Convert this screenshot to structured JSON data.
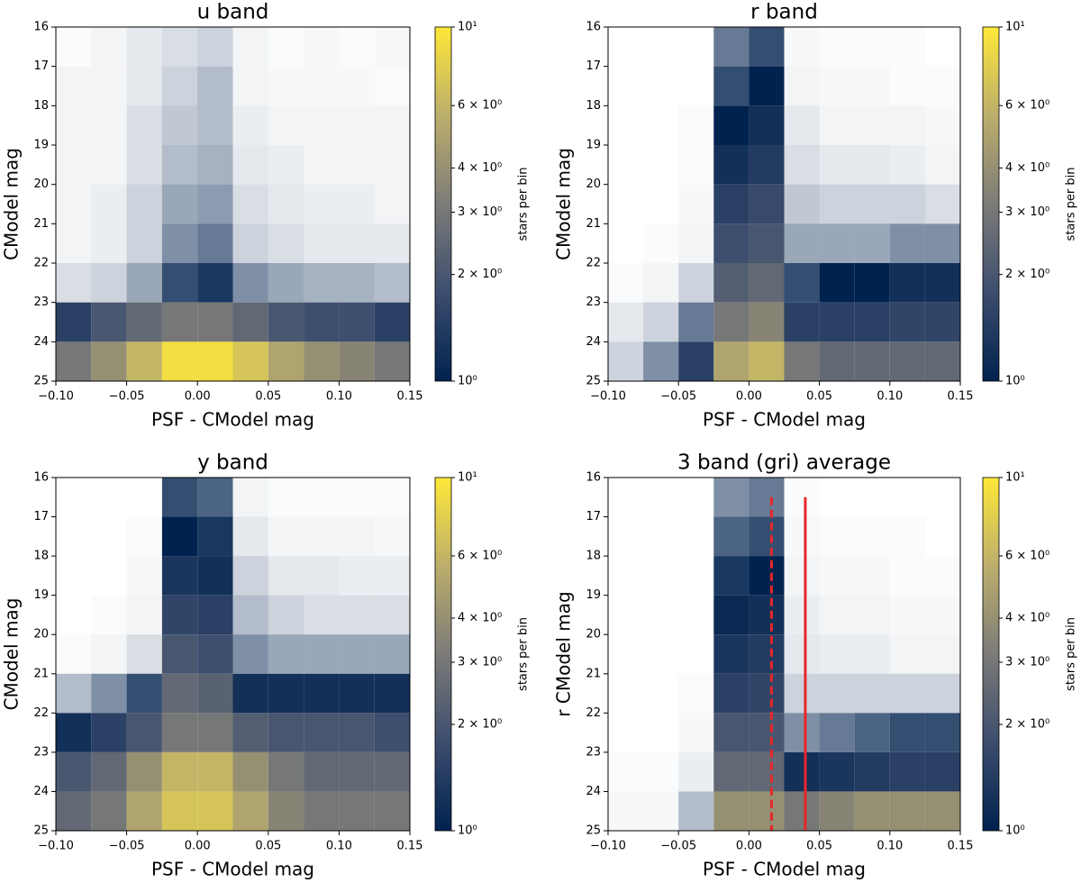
{
  "chart_data": [
    {
      "type": "hist2d",
      "title": "u band",
      "xlabel": "PSF - CModel mag",
      "ylabel": "CModel mag",
      "colorbar_label": "stars per bin",
      "xlim": [
        -0.1,
        0.15
      ],
      "ylim": [
        25,
        16
      ],
      "xticks": [
        {
          "value": -0.1,
          "label": "−0.10"
        },
        {
          "value": -0.05,
          "label": "−0.05"
        },
        {
          "value": 0,
          "label": "0.00"
        },
        {
          "value": 0.05,
          "label": "0.05"
        },
        {
          "value": 0.1,
          "label": "0.10"
        },
        {
          "value": 0.15,
          "label": "0.15"
        }
      ],
      "yticks": [
        16,
        17,
        18,
        19,
        20,
        21,
        22,
        23,
        24,
        25
      ],
      "clim": [
        1,
        10
      ],
      "clog": true,
      "cticks": [
        {
          "value": 1,
          "label": "10⁰"
        },
        {
          "value": 2,
          "label": "2 × 10⁰"
        },
        {
          "value": 3,
          "label": "3 × 10⁰"
        },
        {
          "value": 4,
          "label": "4 × 10⁰"
        },
        {
          "value": 6,
          "label": "6 × 10⁰"
        },
        {
          "value": 10,
          "label": "10¹"
        }
      ],
      "colors": [
        "#00224e",
        "#3c4d6e",
        "#7c7b78",
        "#bcae6c",
        "#fee838"
      ],
      "xbins": [
        -0.1,
        -0.075,
        -0.05,
        -0.025,
        0,
        0.025,
        0.05,
        0.075,
        0.1,
        0.125,
        0.15
      ],
      "ybins": [
        16,
        17,
        18,
        19,
        20,
        21,
        22,
        23,
        24,
        25
      ],
      "values": [
        [
          0.02,
          0.05,
          0.1,
          0.15,
          0.2,
          0.05,
          0.02,
          0.03,
          0.02,
          0.03
        ],
        [
          0.05,
          0.05,
          0.1,
          0.2,
          0.3,
          0.05,
          0.03,
          0.03,
          0.03,
          0.02
        ],
        [
          0.05,
          0.05,
          0.15,
          0.25,
          0.3,
          0.08,
          0.05,
          0.05,
          0.05,
          0.05
        ],
        [
          0.05,
          0.05,
          0.15,
          0.3,
          0.35,
          0.1,
          0.08,
          0.05,
          0.05,
          0.05
        ],
        [
          0.05,
          0.08,
          0.2,
          0.4,
          0.45,
          0.15,
          0.1,
          0.08,
          0.08,
          0.05
        ],
        [
          0.05,
          0.08,
          0.2,
          0.5,
          0.6,
          0.2,
          0.15,
          0.1,
          0.1,
          0.1
        ],
        [
          0.15,
          0.2,
          0.4,
          0.8,
          0.9,
          0.5,
          0.4,
          0.35,
          0.35,
          0.3
        ],
        [
          1.5,
          2,
          2.5,
          3,
          3,
          2.5,
          2,
          1.8,
          1.8,
          1.5
        ],
        [
          3,
          4,
          6,
          9,
          9,
          7,
          5,
          4,
          3.5,
          3
        ]
      ]
    },
    {
      "type": "hist2d",
      "title": "r band",
      "xlabel": "PSF - CModel mag",
      "ylabel": "CModel mag",
      "colorbar_label": "stars per bin",
      "xlim": [
        -0.1,
        0.15
      ],
      "ylim": [
        25,
        16
      ],
      "xticks": [
        {
          "value": -0.1,
          "label": "−0.10"
        },
        {
          "value": -0.05,
          "label": "−0.05"
        },
        {
          "value": 0,
          "label": "0.00"
        },
        {
          "value": 0.05,
          "label": "0.05"
        },
        {
          "value": 0.1,
          "label": "0.10"
        },
        {
          "value": 0.15,
          "label": "0.15"
        }
      ],
      "yticks": [
        16,
        17,
        18,
        19,
        20,
        21,
        22,
        23,
        24,
        25
      ],
      "clim": [
        1,
        10
      ],
      "clog": true,
      "cticks": [
        {
          "value": 1,
          "label": "10⁰"
        },
        {
          "value": 2,
          "label": "2 × 10⁰"
        },
        {
          "value": 3,
          "label": "3 × 10⁰"
        },
        {
          "value": 4,
          "label": "4 × 10⁰"
        },
        {
          "value": 6,
          "label": "6 × 10⁰"
        },
        {
          "value": 10,
          "label": "10¹"
        }
      ],
      "colors": [
        "#00224e",
        "#3c4d6e",
        "#7c7b78",
        "#bcae6c",
        "#fee838"
      ],
      "xbins": [
        -0.1,
        -0.075,
        -0.05,
        -0.025,
        0,
        0.025,
        0.05,
        0.075,
        0.1,
        0.125,
        0.15
      ],
      "ybins": [
        16,
        17,
        18,
        19,
        20,
        21,
        22,
        23,
        24,
        25
      ],
      "values": [
        [
          null,
          null,
          null,
          0.6,
          0.8,
          0.03,
          0.02,
          0.02,
          0.02,
          null
        ],
        [
          null,
          null,
          null,
          0.8,
          1,
          0.05,
          0.03,
          0.03,
          0.02,
          0.02
        ],
        [
          null,
          null,
          0.02,
          1,
          1.2,
          0.1,
          0.05,
          0.05,
          0.05,
          0.03
        ],
        [
          null,
          null,
          0.02,
          1.2,
          1.4,
          0.15,
          0.1,
          0.1,
          0.08,
          0.05
        ],
        [
          null,
          null,
          0.03,
          1.5,
          1.7,
          0.25,
          0.2,
          0.2,
          0.2,
          0.15
        ],
        [
          null,
          0.02,
          0.05,
          1.8,
          2,
          0.4,
          0.4,
          0.4,
          0.5,
          0.5
        ],
        [
          0.02,
          0.05,
          0.2,
          2.2,
          2.5,
          0.8,
          1,
          1,
          1.2,
          1.2
        ],
        [
          0.1,
          0.2,
          0.6,
          3,
          3.5,
          1.5,
          1.5,
          1.5,
          1.6,
          1.6
        ],
        [
          0.2,
          0.5,
          1.5,
          5,
          6,
          3,
          2.5,
          2.5,
          2.5,
          2.5
        ]
      ]
    },
    {
      "type": "hist2d",
      "title": "y band",
      "xlabel": "PSF - CModel mag",
      "ylabel": "CModel mag",
      "colorbar_label": "stars per bin",
      "xlim": [
        -0.1,
        0.15
      ],
      "ylim": [
        25,
        16
      ],
      "xticks": [
        {
          "value": -0.1,
          "label": "−0.10"
        },
        {
          "value": -0.05,
          "label": "−0.05"
        },
        {
          "value": 0,
          "label": "0.00"
        },
        {
          "value": 0.05,
          "label": "0.05"
        },
        {
          "value": 0.1,
          "label": "0.10"
        },
        {
          "value": 0.15,
          "label": "0.15"
        }
      ],
      "yticks": [
        16,
        17,
        18,
        19,
        20,
        21,
        22,
        23,
        24,
        25
      ],
      "clim": [
        1,
        10
      ],
      "clog": true,
      "cticks": [
        {
          "value": 1,
          "label": "10⁰"
        },
        {
          "value": 2,
          "label": "2 × 10⁰"
        },
        {
          "value": 3,
          "label": "3 × 10⁰"
        },
        {
          "value": 4,
          "label": "4 × 10⁰"
        },
        {
          "value": 6,
          "label": "6 × 10⁰"
        },
        {
          "value": 10,
          "label": "10¹"
        }
      ],
      "colors": [
        "#00224e",
        "#3c4d6e",
        "#7c7b78",
        "#bcae6c",
        "#fee838"
      ],
      "xbins": [
        -0.1,
        -0.075,
        -0.05,
        -0.025,
        0,
        0.025,
        0.05,
        0.075,
        0.1,
        0.125,
        0.15
      ],
      "ybins": [
        16,
        17,
        18,
        19,
        20,
        21,
        22,
        23,
        24,
        25
      ],
      "values": [
        [
          null,
          null,
          null,
          0.8,
          0.7,
          0.05,
          0.02,
          0.02,
          0.02,
          0.02
        ],
        [
          null,
          null,
          0.02,
          1,
          0.9,
          0.1,
          0.05,
          0.05,
          0.05,
          0.03
        ],
        [
          null,
          null,
          0.03,
          1.3,
          1.2,
          0.2,
          0.1,
          0.1,
          0.08,
          0.08
        ],
        [
          null,
          0.02,
          0.05,
          1.6,
          1.5,
          0.3,
          0.2,
          0.15,
          0.15,
          0.15
        ],
        [
          0.02,
          0.05,
          0.15,
          2,
          1.8,
          0.5,
          0.4,
          0.4,
          0.4,
          0.4
        ],
        [
          0.3,
          0.5,
          0.8,
          2.5,
          2.3,
          1.2,
          1.2,
          1.2,
          1.2,
          1.2
        ],
        [
          1.2,
          1.5,
          2,
          3,
          3,
          2.2,
          2,
          2,
          2,
          1.8
        ],
        [
          2,
          2.5,
          4,
          6,
          6,
          4,
          3,
          2.5,
          2.5,
          2.5
        ],
        [
          2.5,
          3,
          5,
          7,
          7,
          5,
          3.5,
          3,
          3,
          3
        ]
      ]
    },
    {
      "type": "hist2d",
      "title": "3 band (gri) average",
      "xlabel": "PSF - CModel mag",
      "ylabel": "r CModel mag",
      "colorbar_label": "stars per bin",
      "xlim": [
        -0.1,
        0.15
      ],
      "ylim": [
        25,
        16
      ],
      "xticks": [
        {
          "value": -0.1,
          "label": "−0.10"
        },
        {
          "value": -0.05,
          "label": "−0.05"
        },
        {
          "value": 0,
          "label": "0.00"
        },
        {
          "value": 0.05,
          "label": "0.05"
        },
        {
          "value": 0.1,
          "label": "0.10"
        },
        {
          "value": 0.15,
          "label": "0.15"
        }
      ],
      "yticks": [
        16,
        17,
        18,
        19,
        20,
        21,
        22,
        23,
        24,
        25
      ],
      "clim": [
        1,
        10
      ],
      "clog": true,
      "cticks": [
        {
          "value": 1,
          "label": "10⁰"
        },
        {
          "value": 2,
          "label": "2 × 10⁰"
        },
        {
          "value": 3,
          "label": "3 × 10⁰"
        },
        {
          "value": 4,
          "label": "4 × 10⁰"
        },
        {
          "value": 6,
          "label": "6 × 10⁰"
        },
        {
          "value": 10,
          "label": "10¹"
        }
      ],
      "colors": [
        "#00224e",
        "#3c4d6e",
        "#7c7b78",
        "#bcae6c",
        "#fee838"
      ],
      "xbins": [
        -0.1,
        -0.075,
        -0.05,
        -0.025,
        0,
        0.025,
        0.05,
        0.075,
        0.1,
        0.125,
        0.15
      ],
      "ybins": [
        16,
        17,
        18,
        19,
        20,
        21,
        22,
        23,
        24,
        25
      ],
      "values": [
        [
          null,
          null,
          null,
          0.5,
          0.6,
          0.02,
          null,
          null,
          null,
          null
        ],
        [
          null,
          null,
          null,
          0.7,
          0.8,
          0.03,
          0.02,
          0.02,
          0.02,
          null
        ],
        [
          null,
          null,
          null,
          0.9,
          1,
          0.05,
          0.03,
          0.03,
          0.02,
          0.02
        ],
        [
          null,
          null,
          null,
          1.1,
          1.2,
          0.08,
          0.05,
          0.05,
          0.03,
          0.03
        ],
        [
          null,
          null,
          null,
          1.3,
          1.4,
          0.1,
          0.08,
          0.08,
          0.05,
          0.05
        ],
        [
          null,
          null,
          0.02,
          1.5,
          1.6,
          0.2,
          0.2,
          0.2,
          0.2,
          0.2
        ],
        [
          null,
          null,
          0.03,
          2,
          2,
          0.5,
          0.6,
          0.7,
          0.8,
          0.8
        ],
        [
          0.02,
          0.02,
          0.08,
          2.5,
          2.5,
          1.2,
          1.3,
          1.4,
          1.5,
          1.5
        ],
        [
          0.03,
          0.03,
          0.3,
          4,
          4,
          3,
          3.5,
          4,
          4,
          4
        ]
      ],
      "vlines": [
        {
          "x": 0.016,
          "ymin": 16.5,
          "ymax": 25,
          "color": "#e8262a",
          "dashed": true
        },
        {
          "x": 0.04,
          "ymin": 16.5,
          "ymax": 25,
          "color": "#e8262a",
          "dashed": false
        }
      ]
    }
  ]
}
